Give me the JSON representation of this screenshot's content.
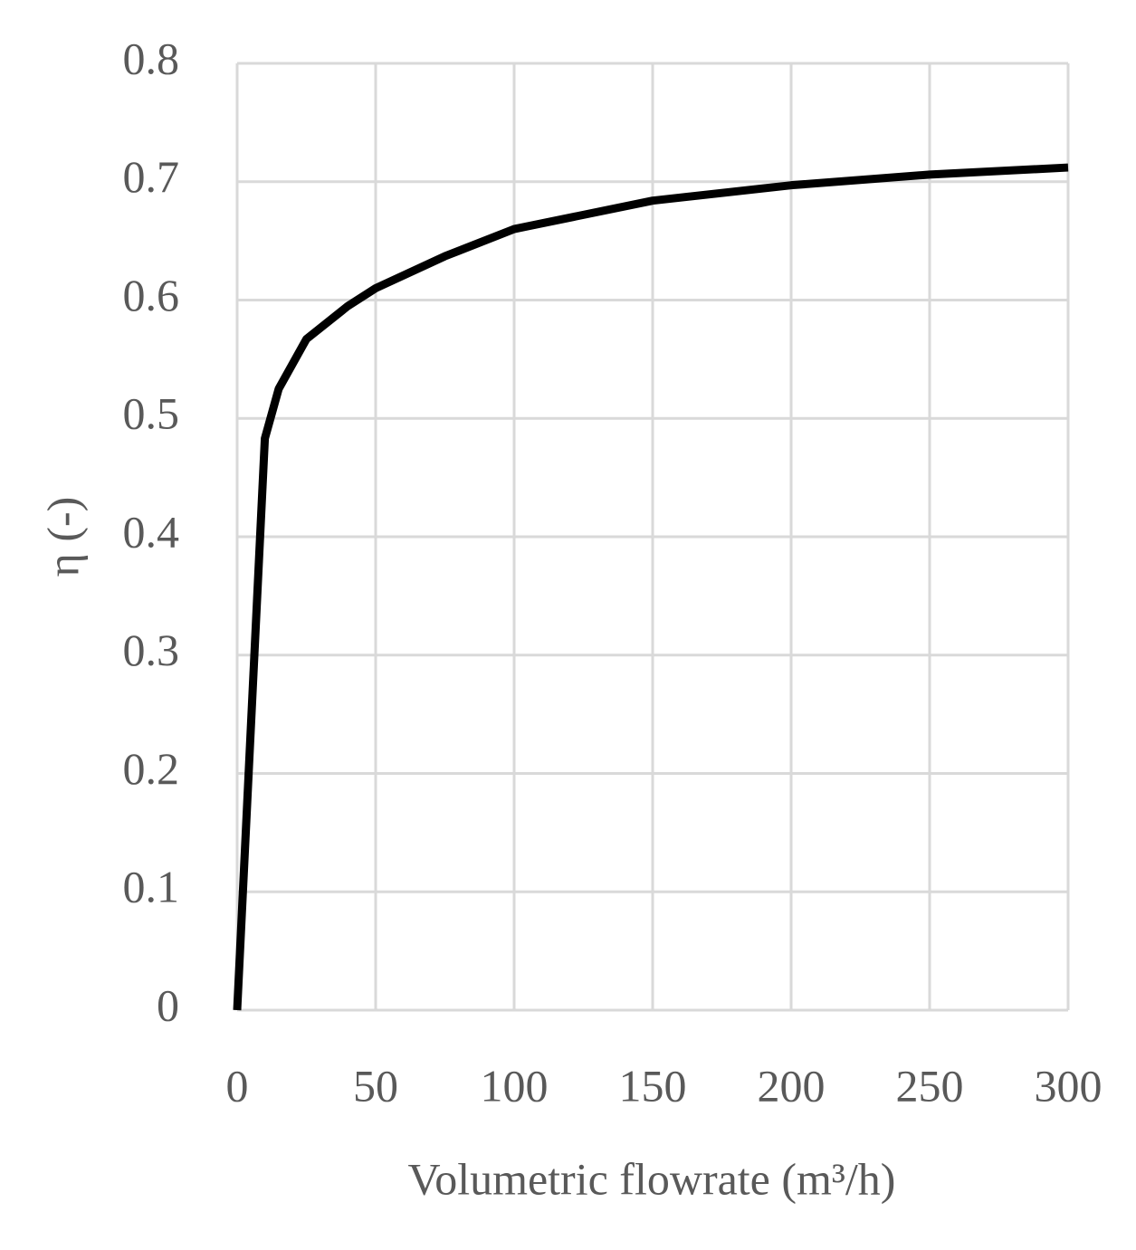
{
  "chart_data": {
    "type": "line",
    "x_label": "Volumetric flowrate (m³/h)",
    "y_label": "η (-)",
    "x": [
      0,
      10,
      15,
      25,
      40,
      50,
      75,
      100,
      150,
      200,
      250,
      300
    ],
    "series": [
      {
        "color": "#000000",
        "values": [
          0,
          0.483,
          0.525,
          0.567,
          0.595,
          0.61,
          0.637,
          0.66,
          0.684,
          0.697,
          0.706,
          0.712
        ]
      }
    ],
    "xlim": [
      0,
      300
    ],
    "xticks": [
      0,
      50,
      100,
      150,
      200,
      250,
      300
    ],
    "ylim": [
      0,
      0.8
    ],
    "yticks": [
      0,
      0.1,
      0.2,
      0.3,
      0.4,
      0.5,
      0.6,
      0.7,
      0.8
    ],
    "grid": true
  }
}
